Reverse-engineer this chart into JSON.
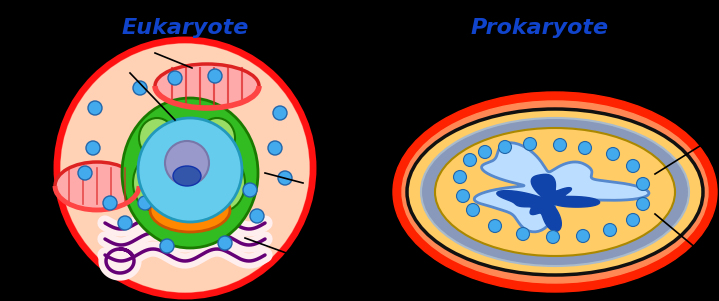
{
  "background_color": "#000000",
  "title_eukaryote": "Eukaryote",
  "title_prokaryote": "Prokaryote",
  "title_color": "#1144cc",
  "title_fontsize": 16,
  "colors": {
    "cell_wall_red": "#ff1111",
    "cell_fill_peach": "#ffddbb",
    "cell_inner_salmon": "#ffbbaa",
    "nucleus_membrane_green": "#33bb22",
    "nucleus_membrane_light": "#99dd66",
    "nucleus_blue": "#66ccee",
    "nucleus_orange_base": "#ff8800",
    "nucleolus_lavender": "#9999cc",
    "nucleolus_dark_blue": "#3355aa",
    "mito_fill": "#ffaaaa",
    "mito_border": "#dd2222",
    "mito_top": "#ff4444",
    "mito_inner": "#dd2222",
    "er_outline": "#660077",
    "er_fill": "#ffeeee",
    "ribosome": "#44aaee",
    "ribosome_edge": "#2266aa",
    "prok_red_outer": "#ff2200",
    "prok_salmon": "#ff8855",
    "prok_black": "#111111",
    "prok_blueGray": "#8899bb",
    "prok_blueGray2": "#aabbcc",
    "prok_yellow": "#ffcc66",
    "prok_nucleoid_light": "#bbddff",
    "prok_nucleoid_blue": "#1144aa",
    "line_color": "#000000"
  }
}
